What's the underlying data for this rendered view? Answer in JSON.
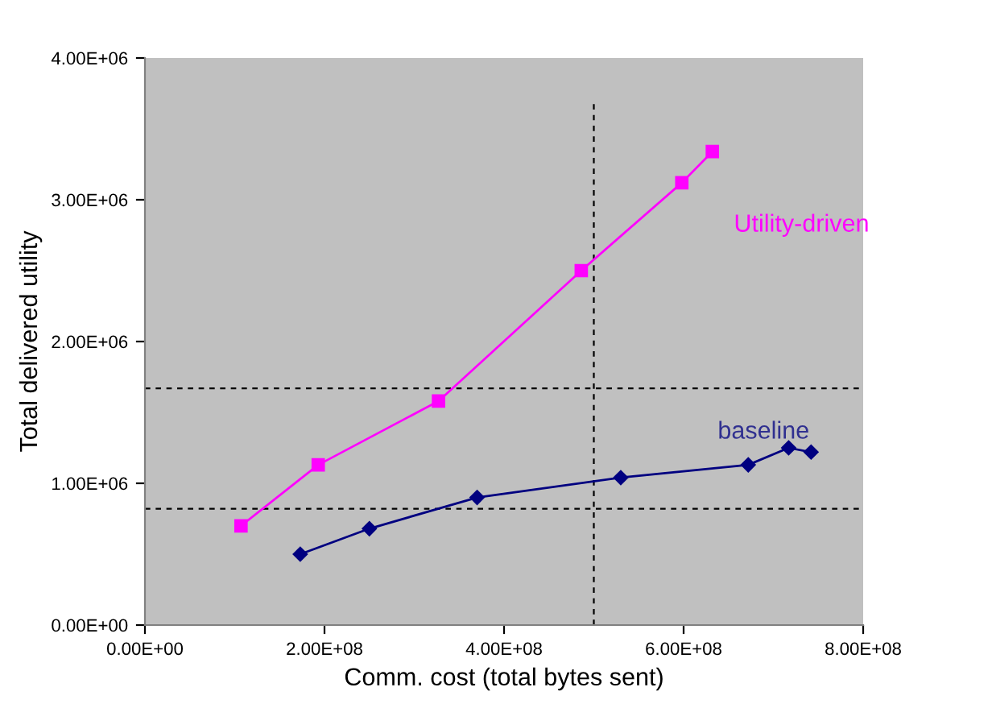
{
  "chart_data": {
    "type": "line",
    "xlabel": "Comm. cost (total bytes sent)",
    "ylabel": "Total delivered utility",
    "xlim": [
      0,
      800000000
    ],
    "ylim": [
      0,
      4000000
    ],
    "xticks": [
      {
        "value": 0,
        "label": "0.00E+00"
      },
      {
        "value": 200000000,
        "label": "2.00E+08"
      },
      {
        "value": 400000000,
        "label": "4.00E+08"
      },
      {
        "value": 600000000,
        "label": "6.00E+08"
      },
      {
        "value": 800000000,
        "label": "8.00E+08"
      }
    ],
    "yticks": [
      {
        "value": 0,
        "label": "0.00E+00"
      },
      {
        "value": 1000000,
        "label": "1.00E+06"
      },
      {
        "value": 2000000,
        "label": "2.00E+06"
      },
      {
        "value": 3000000,
        "label": "3.00E+06"
      },
      {
        "value": 4000000,
        "label": "4.00E+06"
      }
    ],
    "grid": false,
    "legend": false,
    "series": [
      {
        "name": "Utility-driven",
        "color": "#ff00ff",
        "marker": "square",
        "x": [
          107000000,
          193000000,
          327000000,
          486000000,
          598000000,
          632000000
        ],
        "values": [
          700000,
          1130000,
          1580000,
          2500000,
          3120000,
          3340000
        ]
      },
      {
        "name": "baseline",
        "color": "#000080",
        "marker": "diamond",
        "x": [
          173000000,
          250000000,
          370000000,
          530000000,
          672000000,
          717000000,
          742000000
        ],
        "values": [
          500000,
          680000,
          900000,
          1040000,
          1130000,
          1250000,
          1220000
        ]
      }
    ],
    "ref_lines": [
      {
        "axis": "x",
        "value": 500000000,
        "color": "#000000",
        "line_style": "dashed"
      },
      {
        "axis": "y",
        "value": 1670000,
        "color": "#000000",
        "line_style": "dashed"
      },
      {
        "axis": "y",
        "value": 820000,
        "color": "#000000",
        "line_style": "dashed"
      }
    ]
  }
}
